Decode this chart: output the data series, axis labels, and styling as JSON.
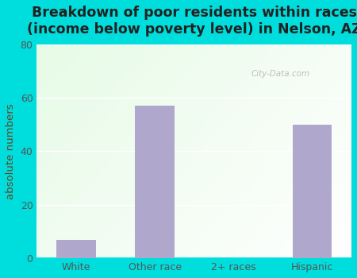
{
  "categories": [
    "White",
    "Other race",
    "2+ races",
    "Hispanic"
  ],
  "values": [
    7,
    57,
    0,
    50
  ],
  "bar_color": "#b0a8cc",
  "title_line1": "Breakdown of poor residents within races",
  "title_line2": "(income below poverty level) in Nelson, ",
  "title_az": "AZ",
  "ylabel": "absolute numbers",
  "ylim": [
    0,
    80
  ],
  "yticks": [
    0,
    20,
    40,
    60,
    80
  ],
  "bg_outer": "#00dddd",
  "title_color": "#222222",
  "title_fontsize": 12.5,
  "label_fontsize": 9.5,
  "tick_fontsize": 9,
  "watermark": "City-Data.com",
  "watermark_color": "#aaaaaa",
  "ylabel_color": "#664422",
  "tick_color": "#555555",
  "grid_color": "#ffffff",
  "spine_bottom_color": "#00dddd"
}
